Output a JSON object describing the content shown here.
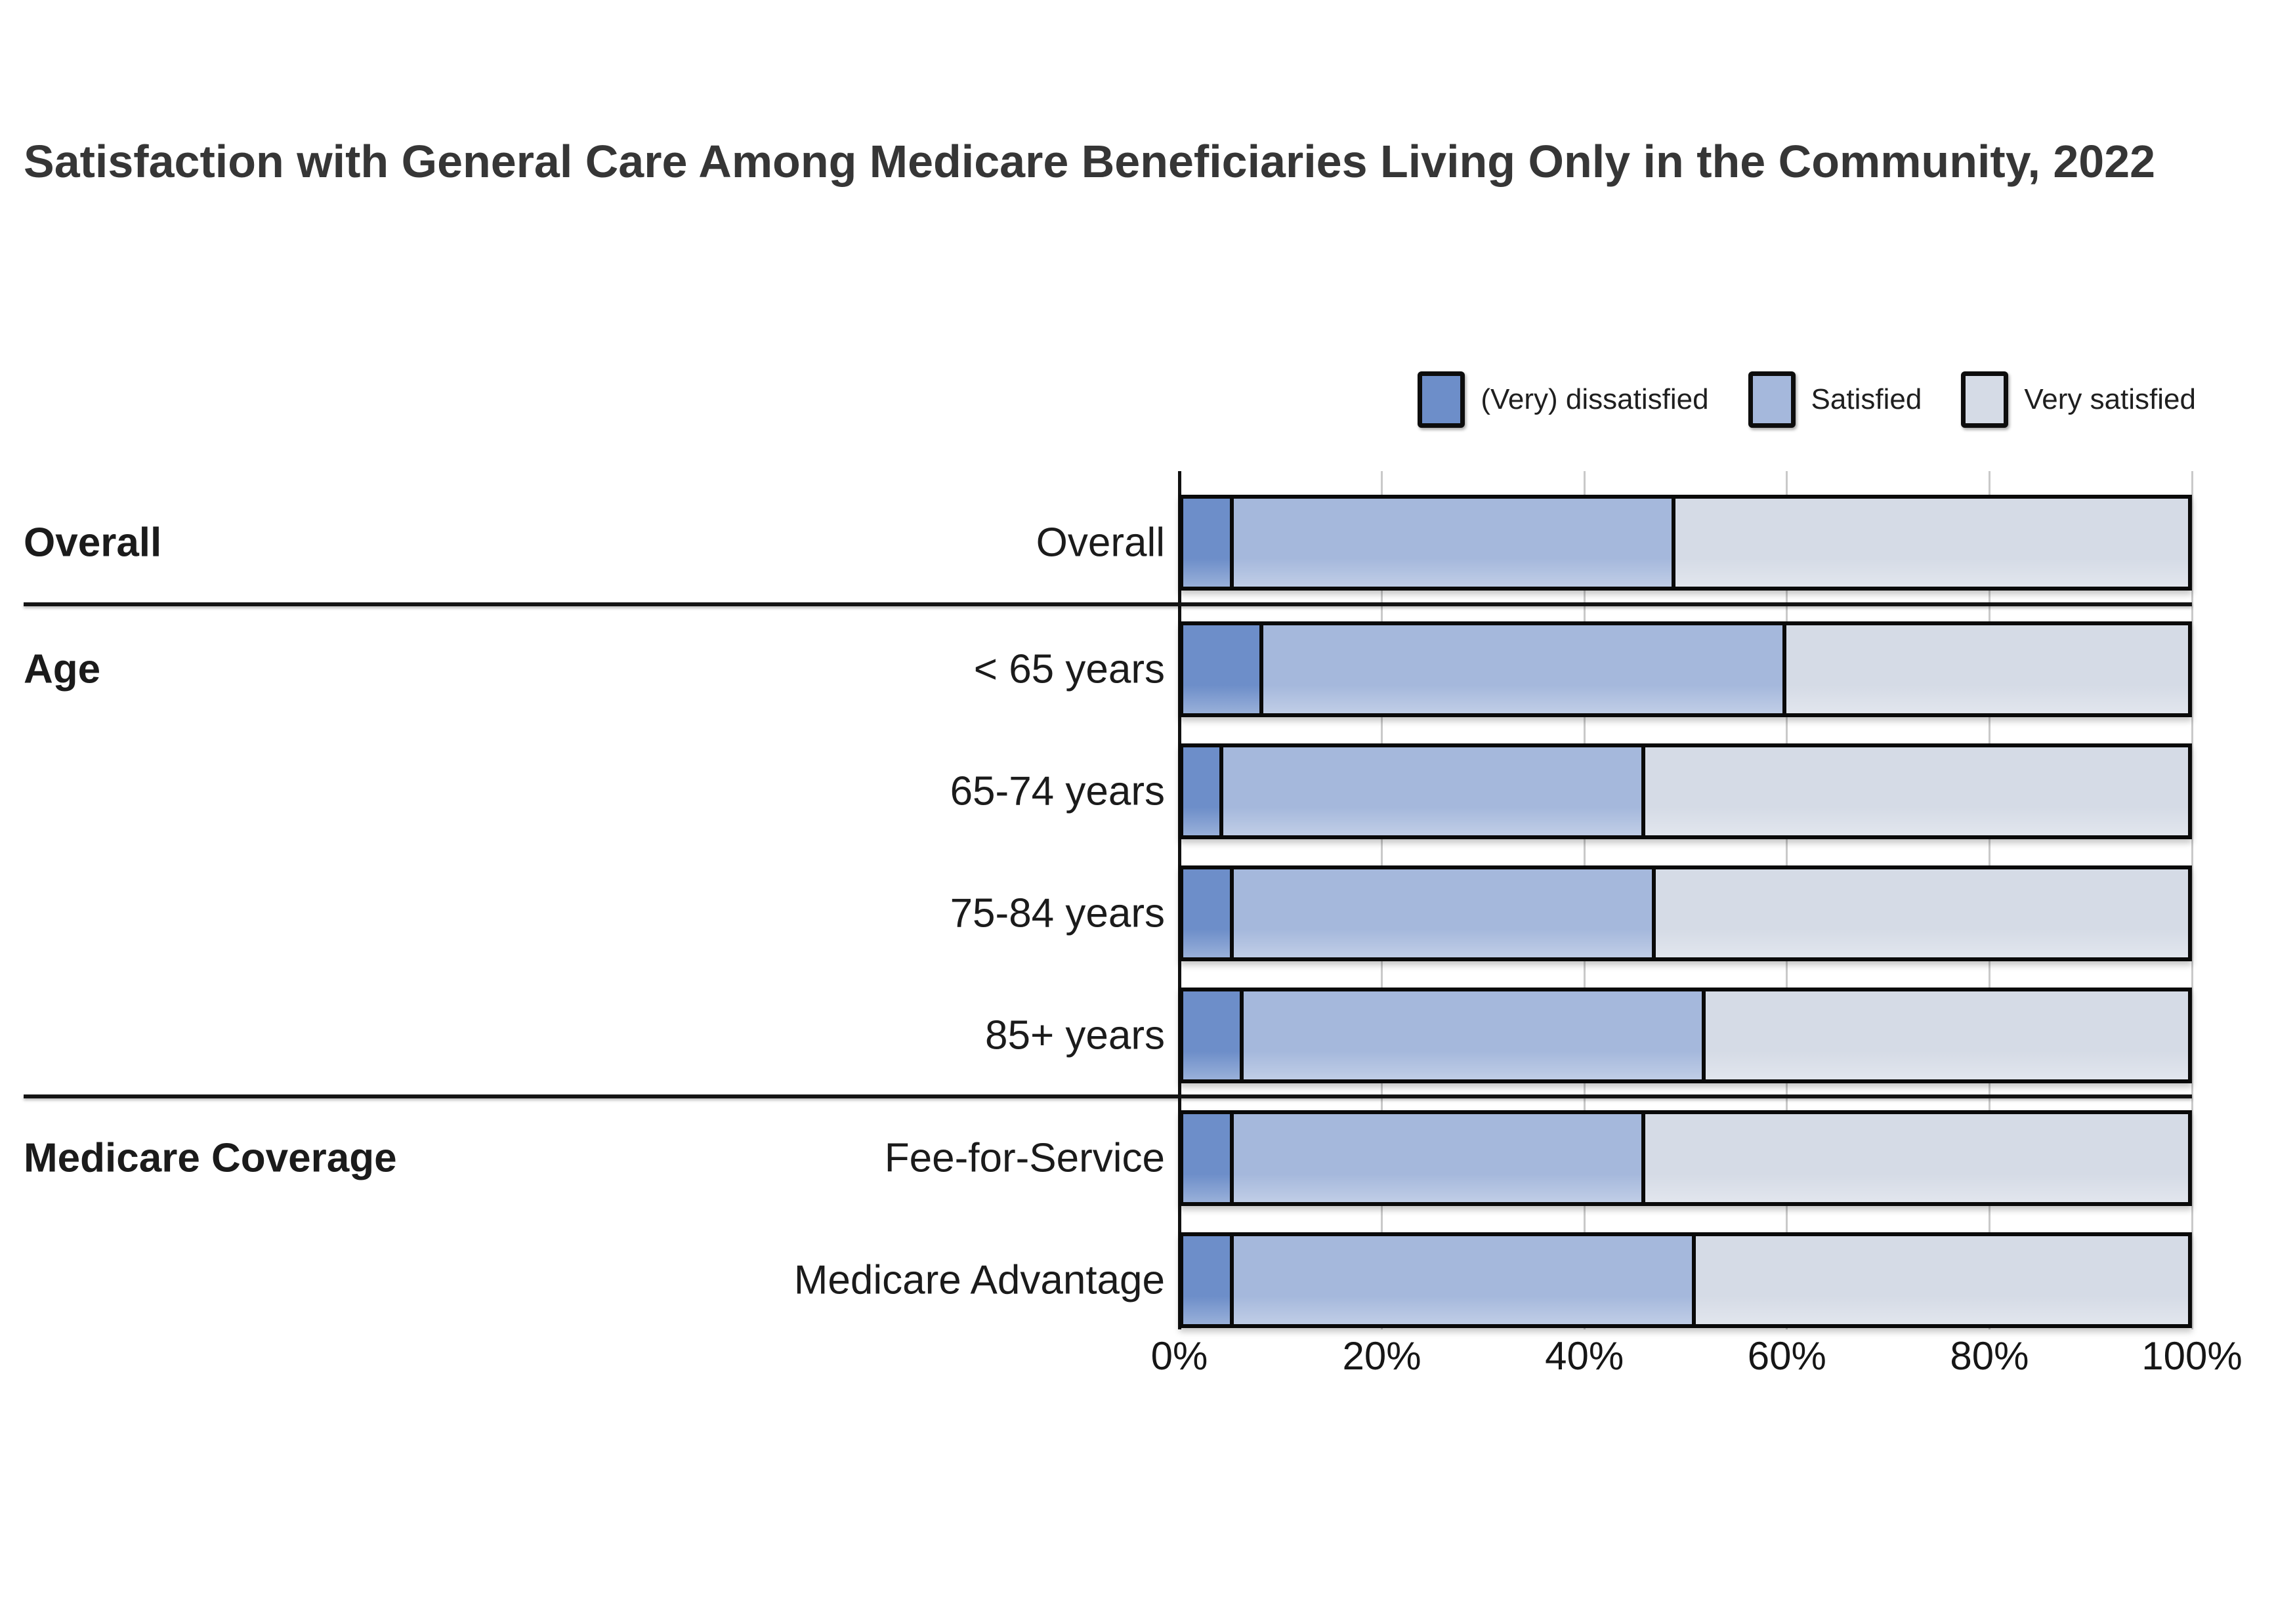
{
  "title": "Satisfaction with General Care Among Medicare Beneficiaries Living Only in the Community, 2022",
  "colors": {
    "dissatisfied": "#6d8ec9",
    "satisfied": "#a5b8dc",
    "very_satisfied": "#d5dbe6",
    "bar_border": "#0a0a0a",
    "axis_spine": "#111111",
    "gridline": "#c9c9c9",
    "title_text": "#363636"
  },
  "chart_data": {
    "type": "bar",
    "subtype": "horizontal-stacked-100pct",
    "unit": "%",
    "title": "Satisfaction with General Care Among Medicare Beneficiaries Living Only in the Community, 2022",
    "legend_position": "top-right",
    "grid": true,
    "series": [
      {
        "name": "(Very) dissatisfied",
        "color": "#6d8ec9"
      },
      {
        "name": "Satisfied",
        "color": "#a5b8dc"
      },
      {
        "name": "Very satisfied",
        "color": "#d5dbe6"
      }
    ],
    "sections": [
      {
        "label": "Overall",
        "rows": [
          {
            "label": "Overall",
            "values": [
              5,
              44,
              51
            ]
          }
        ]
      },
      {
        "label": "Age",
        "rows": [
          {
            "label": "< 65 years",
            "values": [
              8,
              52,
              40
            ]
          },
          {
            "label": "65-74 years",
            "values": [
              4,
              42,
              54
            ]
          },
          {
            "label": "75-84 years",
            "values": [
              5,
              42,
              53
            ]
          },
          {
            "label": "85+ years",
            "values": [
              6,
              46,
              48
            ]
          }
        ]
      },
      {
        "label": "Medicare Coverage",
        "rows": [
          {
            "label": "Fee-for-Service",
            "values": [
              5,
              41,
              54
            ]
          },
          {
            "label": "Medicare Advantage",
            "values": [
              5,
              46,
              49
            ]
          }
        ]
      }
    ],
    "x_axis": {
      "min": 0,
      "max": 100,
      "ticks": [
        "0%",
        "20%",
        "40%",
        "60%",
        "80%",
        "100%"
      ],
      "tick_values": [
        0,
        20,
        40,
        60,
        80,
        100
      ]
    }
  }
}
